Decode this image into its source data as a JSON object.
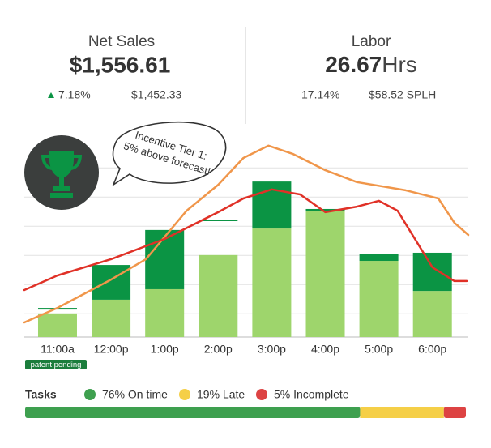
{
  "header": {
    "left": {
      "title": "Net Sales",
      "value": "$1,556.61",
      "change": "7.18%",
      "compare": "$1,452.33"
    },
    "right": {
      "title": "Labor",
      "value": "26.67",
      "unit": "Hrs",
      "percent": "17.14%",
      "splh": "$58.52 SPLH"
    }
  },
  "callout": {
    "lines": [
      "Incentive Tier 1:",
      "5% above forecast!"
    ]
  },
  "badge": "patent pending",
  "chart_data": {
    "type": "bar",
    "categories": [
      "11:00a",
      "12:00p",
      "1:00p",
      "2:00p",
      "3:00p",
      "4:00p",
      "5:00p",
      "6:00p"
    ],
    "series": [
      {
        "color": "#9ed56c",
        "values": [
          8.1,
          12.8,
          16.4,
          28.1,
          37.2,
          43.3,
          26.1,
          15.8
        ]
      },
      {
        "color": "#0b9444",
        "values": [
          null,
          11.9,
          20.3,
          null,
          16.1,
          0.6,
          2.5,
          13.1
        ]
      }
    ],
    "markers": {
      "color": "#0b9444",
      "values": [
        9.7,
        null,
        null,
        40,
        null,
        null,
        null,
        null
      ]
    },
    "lines": [
      {
        "color": "#f0964a",
        "x": [
          -0.62,
          0,
          1,
          1.65,
          2.41,
          3,
          3.47,
          3.94,
          4.39,
          5,
          5.59,
          6.5,
          7.11,
          7.41,
          7.67
        ],
        "values": [
          5,
          10,
          19.7,
          26.7,
          43.3,
          52.2,
          61.4,
          65.6,
          62.8,
          57.2,
          53.1,
          50.3,
          47.5,
          39.2,
          35
        ]
      },
      {
        "color": "#e03127",
        "x": [
          -0.62,
          0,
          1,
          2,
          3,
          3.47,
          4,
          4.53,
          5,
          5.59,
          6,
          6.35,
          7,
          7.41,
          7.64
        ],
        "values": [
          16.1,
          21.1,
          26.7,
          33.6,
          42.8,
          47.5,
          50.6,
          48.9,
          42.8,
          44.7,
          46.7,
          43.3,
          23.9,
          19.2,
          19.2
        ]
      }
    ],
    "xlim": [
      -0.62,
      7.67
    ],
    "ylim": [
      0,
      70
    ],
    "yticks": [
      8,
      18,
      28,
      38,
      48,
      58
    ],
    "grid": true
  },
  "tasks": {
    "label": "Tasks",
    "items": [
      {
        "value": 76,
        "label": "76% On time",
        "color": "#3ea04f"
      },
      {
        "value": 19,
        "label": "19% Late",
        "color": "#f5cf47"
      },
      {
        "value": 5,
        "label": "5% Incomplete",
        "color": "#dd4343"
      }
    ]
  }
}
